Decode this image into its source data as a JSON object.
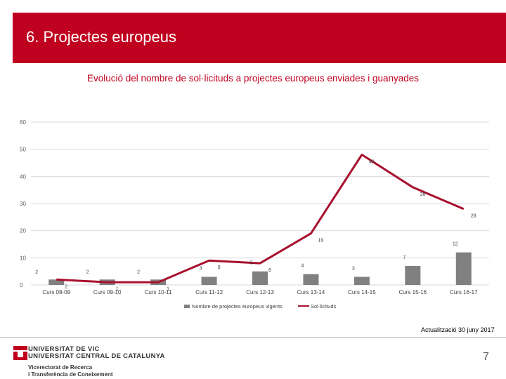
{
  "header": {
    "title": "6. Projectes europeus"
  },
  "chart_data": {
    "type": "bar+line",
    "title": "Evolució del nombre de sol·licituds a projectes europeus enviades i guanyades",
    "categories": [
      "Curs 08-09",
      "Curs 09-10",
      "Curs 10-11",
      "Curs 11-12",
      "Curs 12-13",
      "Curs 13-14",
      "Curs 14-15",
      "Curs 15-16",
      "Curs 16-17"
    ],
    "ylim": [
      0,
      60
    ],
    "yticks": [
      0,
      10,
      20,
      30,
      40,
      50,
      60
    ],
    "series": [
      {
        "name": "Nombre de projectes europeus vigents",
        "type": "bar",
        "color": "#808080",
        "values": [
          2,
          2,
          2,
          3,
          5,
          4,
          3,
          7,
          12
        ]
      },
      {
        "name": "Sol·licituds",
        "type": "line",
        "color": "#a8102e",
        "values": [
          2,
          1,
          1,
          9,
          8,
          19,
          48,
          36,
          28
        ]
      }
    ]
  },
  "footer": {
    "update_text": "Actualització 30 juny 2017",
    "page_number": "7",
    "logo_line1": "UNIVERSITAT DE VIC",
    "logo_line2": "UNIVERSITAT CENTRAL DE CATALUNYA",
    "logo_sub1": "Vicerectorat de Recerca",
    "logo_sub2": "i Transferència de Coneixement",
    "brand_color": "#c0001f"
  }
}
